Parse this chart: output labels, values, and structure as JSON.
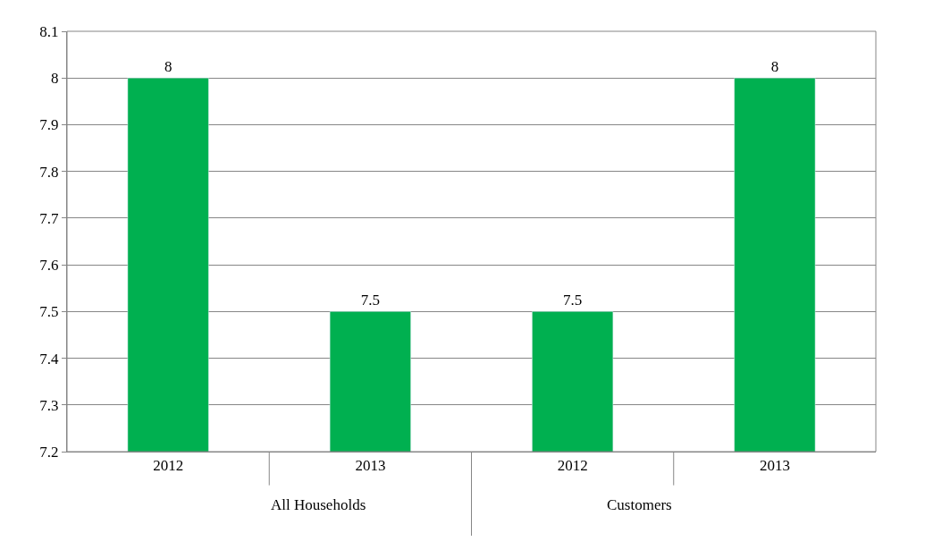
{
  "chart_data": {
    "type": "bar",
    "categories": [
      "2012",
      "2013",
      "2012",
      "2013"
    ],
    "values": [
      8,
      7.5,
      7.5,
      8
    ],
    "color": "#00b050",
    "ylim": [
      7.2,
      8.1
    ],
    "yticks": [
      7.2,
      7.3,
      7.4,
      7.5,
      7.6,
      7.7,
      7.8,
      7.9,
      8,
      8.1
    ],
    "grid": "y",
    "data_labels": true,
    "legend": false,
    "annotations": [
      "All Households",
      "Customers"
    ]
  }
}
